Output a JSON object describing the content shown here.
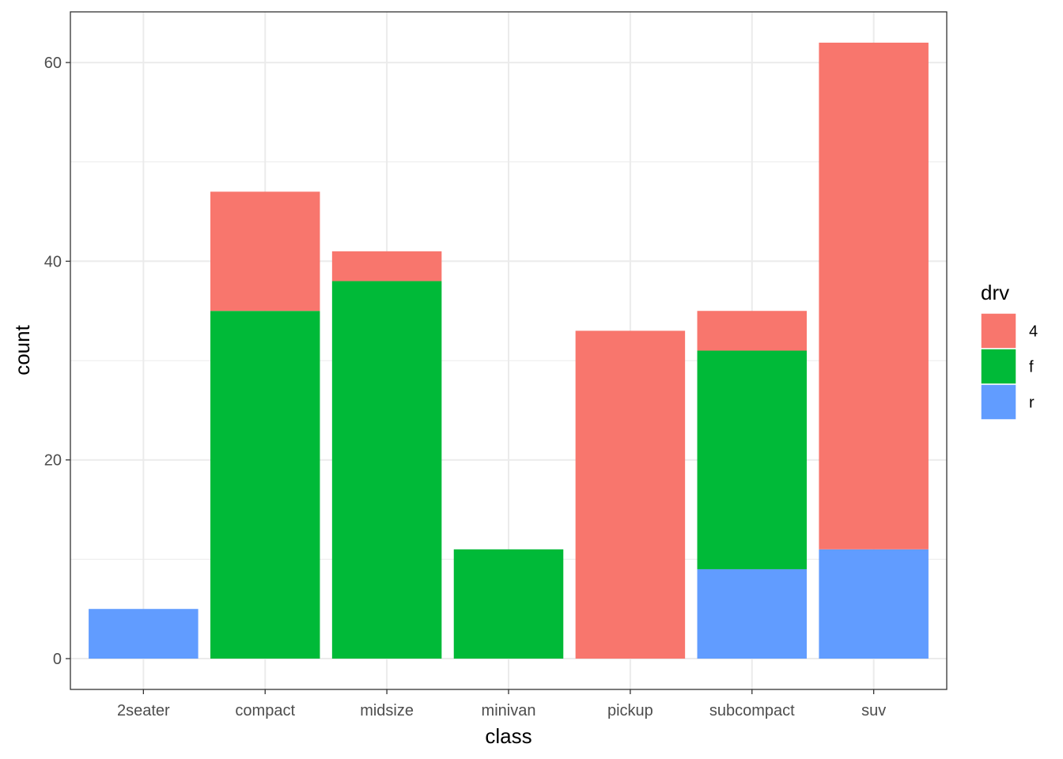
{
  "chart_data": {
    "type": "bar",
    "stacked": true,
    "xlabel": "class",
    "ylabel": "count",
    "categories": [
      "2seater",
      "compact",
      "midsize",
      "minivan",
      "pickup",
      "subcompact",
      "suv"
    ],
    "series": [
      {
        "name": "4",
        "color": "#F8766D",
        "values": [
          0,
          12,
          3,
          0,
          33,
          4,
          51
        ]
      },
      {
        "name": "f",
        "color": "#00BA38",
        "values": [
          0,
          35,
          38,
          11,
          0,
          22,
          0
        ]
      },
      {
        "name": "r",
        "color": "#619CFF",
        "values": [
          5,
          0,
          0,
          0,
          0,
          9,
          11
        ]
      }
    ],
    "stack_order_bottom_to_top": [
      "r",
      "f",
      "4"
    ],
    "ylim": [
      -3.1,
      65.1
    ],
    "yticks": [
      0,
      20,
      40,
      60
    ],
    "yticks_minor": [
      10,
      30,
      50
    ],
    "grid": true,
    "legend": {
      "title": "drv",
      "position": "right",
      "entries": [
        "4",
        "f",
        "r"
      ]
    }
  }
}
